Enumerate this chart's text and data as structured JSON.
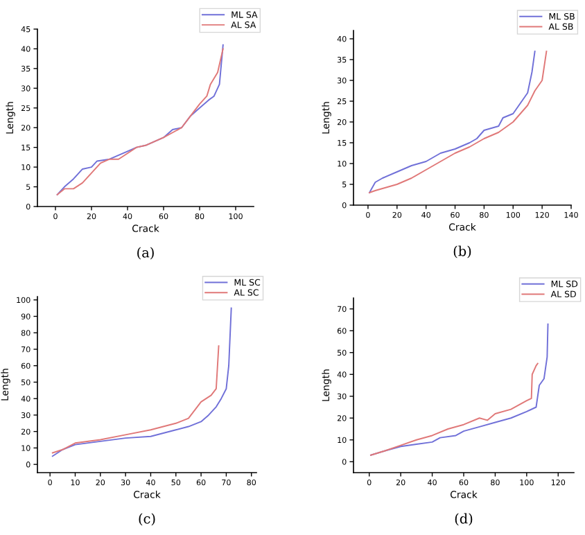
{
  "chart_data": [
    {
      "type": "line",
      "xlabel": "Crack",
      "ylabel": "Length",
      "xlim": [
        -10,
        110
      ],
      "xticks": [
        0,
        20,
        40,
        60,
        80,
        100
      ],
      "ylim": [
        0,
        45
      ],
      "yticks": [
        0,
        5,
        10,
        15,
        20,
        25,
        30,
        35,
        40,
        45
      ],
      "legend": "top right",
      "grid": false,
      "annotations": [
        "(a)"
      ],
      "series": [
        {
          "name": "ML SA",
          "color": "#7070d8",
          "x": [
            1,
            5,
            10,
            15,
            20,
            23,
            30,
            40,
            45,
            50,
            55,
            60,
            65,
            70,
            75,
            80,
            85,
            88,
            91,
            93
          ],
          "values": [
            3,
            5,
            7,
            9.5,
            10,
            11.5,
            12,
            14,
            15,
            15.5,
            16.5,
            17.5,
            19.5,
            20,
            23,
            25,
            27,
            28,
            31,
            41
          ]
        },
        {
          "name": "AL SA",
          "color": "#e07878",
          "x": [
            1,
            5,
            10,
            15,
            20,
            25,
            30,
            35,
            40,
            45,
            50,
            55,
            60,
            70,
            75,
            80,
            84,
            86,
            90,
            93
          ],
          "values": [
            3,
            4.5,
            4.5,
            6,
            8.5,
            11,
            12,
            12,
            13.5,
            15,
            15.5,
            16.5,
            17.5,
            20,
            23,
            26,
            28,
            31,
            34,
            40
          ]
        }
      ]
    },
    {
      "type": "line",
      "xlabel": "Crack",
      "ylabel": "Length",
      "xlim": [
        -10,
        140
      ],
      "xticks": [
        0,
        20,
        40,
        60,
        80,
        100,
        120,
        140
      ],
      "ylim": [
        0,
        42
      ],
      "yticks": [
        0,
        5,
        10,
        15,
        20,
        25,
        30,
        35,
        40
      ],
      "legend": "top right",
      "grid": false,
      "annotations": [
        "(b)"
      ],
      "series": [
        {
          "name": "ML SB",
          "color": "#7070d8",
          "x": [
            1,
            5,
            10,
            20,
            30,
            40,
            50,
            60,
            70,
            75,
            80,
            90,
            93,
            100,
            105,
            110,
            113,
            115
          ],
          "values": [
            3,
            5.5,
            6.5,
            8,
            9.5,
            10.5,
            12.5,
            13.5,
            15,
            16,
            18,
            19,
            21,
            22,
            24.5,
            27,
            32,
            37
          ]
        },
        {
          "name": "AL SB",
          "color": "#e07878",
          "x": [
            1,
            5,
            10,
            20,
            30,
            40,
            50,
            60,
            70,
            80,
            90,
            100,
            110,
            115,
            120,
            123
          ],
          "values": [
            3,
            3.5,
            4,
            5,
            6.5,
            8.5,
            10.5,
            12.5,
            14,
            16,
            17.5,
            20,
            24,
            27.5,
            30,
            37
          ]
        }
      ]
    },
    {
      "type": "line",
      "xlabel": "Crack",
      "ylabel": "Length",
      "xlim": [
        -5,
        82
      ],
      "xticks": [
        0,
        10,
        20,
        30,
        40,
        50,
        60,
        70,
        80
      ],
      "ylim": [
        -5,
        102
      ],
      "yticks": [
        0,
        10,
        20,
        30,
        40,
        50,
        60,
        70,
        80,
        90,
        100
      ],
      "legend": "top right",
      "grid": false,
      "annotations": [
        "(c)"
      ],
      "series": [
        {
          "name": "ML SC",
          "color": "#7070d8",
          "x": [
            1,
            5,
            10,
            20,
            30,
            40,
            45,
            50,
            55,
            60,
            63,
            66,
            68,
            70,
            71,
            72
          ],
          "values": [
            5,
            9,
            12,
            14,
            16,
            17,
            19,
            21,
            23,
            26,
            30,
            35,
            40,
            46,
            60,
            95
          ]
        },
        {
          "name": "AL SC",
          "color": "#e07878",
          "x": [
            1,
            5,
            10,
            20,
            30,
            40,
            50,
            55,
            60,
            64,
            66,
            67
          ],
          "values": [
            7,
            9,
            13,
            15,
            18,
            21,
            25,
            28,
            38,
            42,
            46,
            72
          ]
        }
      ]
    },
    {
      "type": "line",
      "xlabel": "Crack",
      "ylabel": "Length",
      "xlim": [
        -10,
        130
      ],
      "xticks": [
        0,
        20,
        40,
        60,
        80,
        100,
        120
      ],
      "ylim": [
        -5,
        75
      ],
      "yticks": [
        0,
        10,
        20,
        30,
        40,
        50,
        60,
        70
      ],
      "legend": "top right",
      "grid": false,
      "annotations": [
        "(d)"
      ],
      "series": [
        {
          "name": "ML SD",
          "color": "#7070d8",
          "x": [
            1,
            10,
            20,
            30,
            40,
            45,
            55,
            60,
            70,
            80,
            90,
            100,
            106,
            108,
            111,
            113,
            113.5
          ],
          "values": [
            3,
            5,
            7,
            8,
            9,
            11,
            12,
            14,
            16,
            18,
            20,
            23,
            25,
            35,
            38,
            48,
            63
          ]
        },
        {
          "name": "AL SD",
          "color": "#e07878",
          "x": [
            1,
            10,
            20,
            30,
            40,
            50,
            60,
            70,
            75,
            80,
            90,
            100,
            103,
            103.5,
            106,
            107
          ],
          "values": [
            3,
            5,
            7.5,
            10,
            12,
            15,
            17,
            20,
            19,
            22,
            24,
            28,
            29,
            40,
            44,
            45
          ]
        }
      ]
    }
  ]
}
